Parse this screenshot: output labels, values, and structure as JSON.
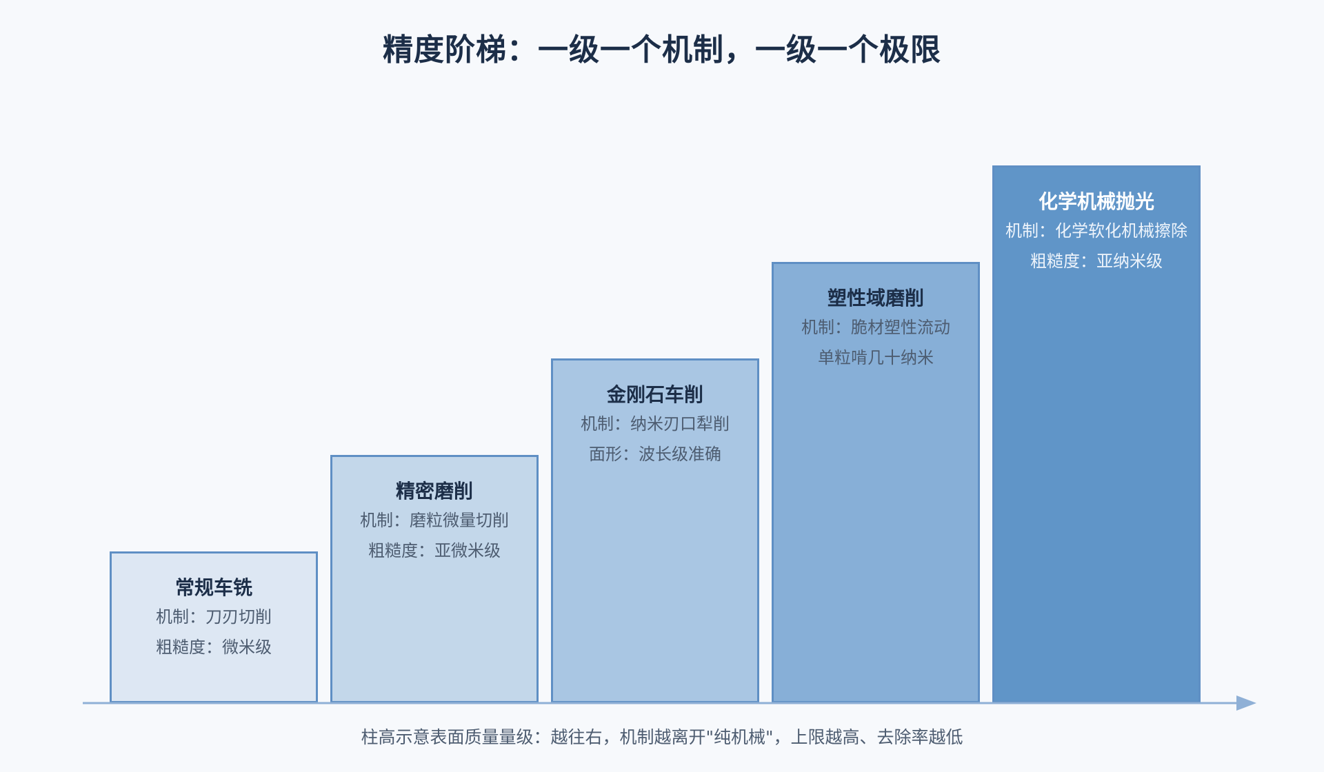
{
  "title": "精度阶梯：一级一个机制，一级一个极限",
  "steps": [
    {
      "name": "常规车铣",
      "line1": "机制：刀刃切削",
      "line2": "粗糙度：微米级"
    },
    {
      "name": "精密磨削",
      "line1": "机制：磨粒微量切削",
      "line2": "粗糙度：亚微米级"
    },
    {
      "name": "金刚石车削",
      "line1": "机制：纳米刃口犁削",
      "line2": "面形：波长级准确"
    },
    {
      "name": "塑性域磨削",
      "line1": "机制：脆材塑性流动",
      "line2": "单粒啃几十纳米"
    },
    {
      "name": "化学机械抛光",
      "line1": "机制：化学软化机械擦除",
      "line2": "粗糙度：亚纳米级"
    }
  ],
  "caption": "柱高示意表面质量量级：越往右，机制越离开\"纯机械\"，上限越高、去除率越低",
  "colors": {
    "fills": [
      "#dde7f3",
      "#c3d7ea",
      "#a9c6e3",
      "#87afd7",
      "#6095c8"
    ],
    "border": "#5f8fc4",
    "axis": "#8fb0d6",
    "title": "#1c2e48"
  }
}
